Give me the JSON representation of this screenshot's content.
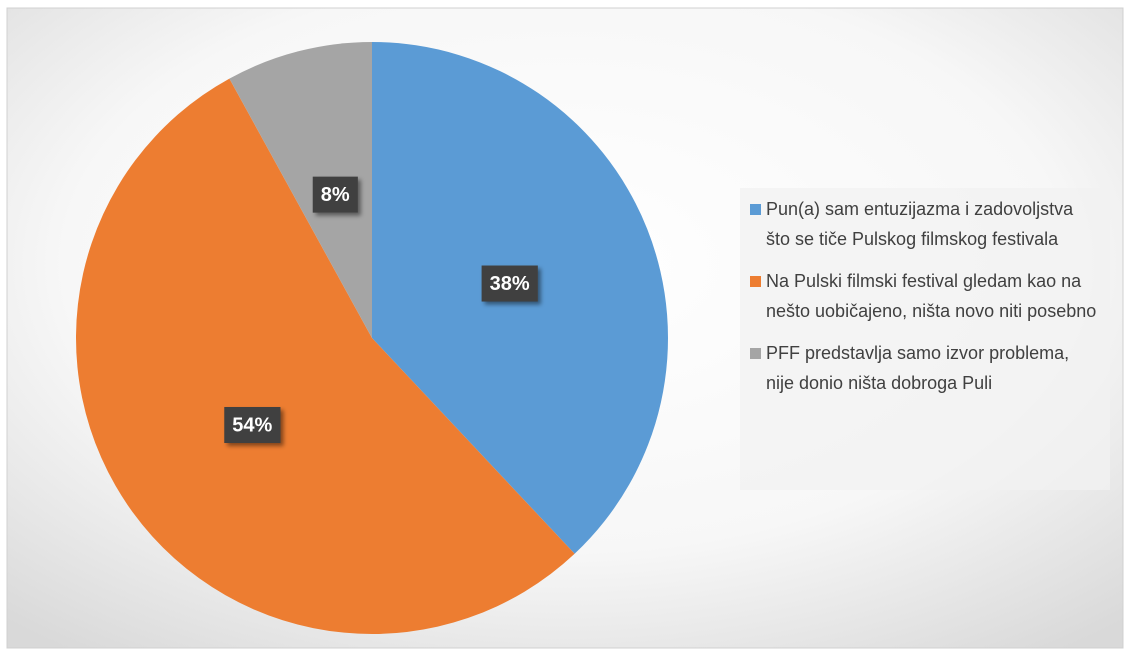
{
  "chart_data": {
    "type": "pie",
    "categories": [
      "Pun(a) sam entuzijazma i zadovoljstva što se tiče Pulskog filmskog festivala",
      "Na Pulski filmski festival gledam kao na nešto uobičajeno, ništa novo niti posebno",
      "PFF predstavlja samo izvor problema, nije donio ništa dobroga Puli"
    ],
    "values": [
      38,
      54,
      8
    ],
    "value_labels": [
      "38%",
      "54%",
      "8%"
    ],
    "colors": [
      "#5b9bd5",
      "#ed7d31",
      "#a5a5a5"
    ],
    "legend": "right"
  }
}
